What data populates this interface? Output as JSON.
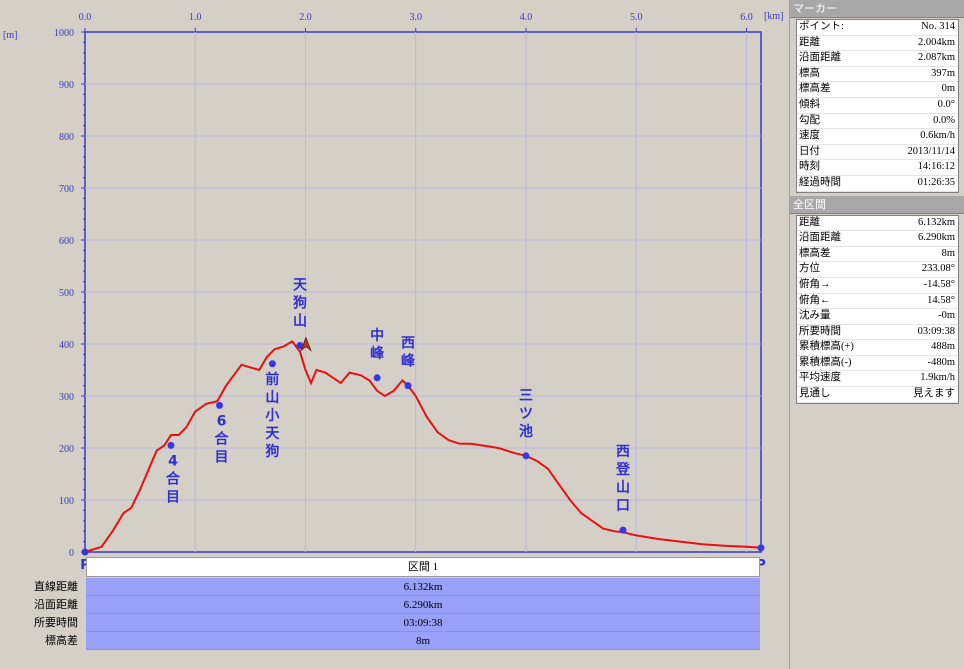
{
  "chart_data": {
    "type": "line",
    "x_unit": "[km]",
    "y_unit": "[m]",
    "xlim": [
      0,
      6.132
    ],
    "ylim": [
      0,
      1000
    ],
    "x_ticks": [
      "0.0",
      "1.0",
      "2.0",
      "3.0",
      "4.0",
      "5.0",
      "6.0"
    ],
    "y_ticks": [
      "0",
      "100",
      "200",
      "300",
      "400",
      "500",
      "600",
      "700",
      "800",
      "900",
      "1000"
    ],
    "grid": true,
    "series": [
      {
        "color": "#e81010",
        "x": [
          0,
          0.15,
          0.25,
          0.35,
          0.42,
          0.5,
          0.58,
          0.65,
          0.72,
          0.78,
          0.85,
          0.92,
          1.0,
          1.1,
          1.2,
          1.28,
          1.35,
          1.42,
          1.5,
          1.58,
          1.65,
          1.72,
          1.8,
          1.88,
          1.95,
          2.0,
          2.05,
          2.1,
          2.18,
          2.25,
          2.32,
          2.4,
          2.5,
          2.58,
          2.65,
          2.72,
          2.8,
          2.88,
          2.93,
          3.0,
          3.1,
          3.2,
          3.3,
          3.4,
          3.5,
          3.6,
          3.75,
          3.9,
          4.0,
          4.1,
          4.2,
          4.3,
          4.4,
          4.5,
          4.6,
          4.7,
          4.8,
          4.88,
          5.0,
          5.2,
          5.4,
          5.6,
          5.8,
          6.0,
          6.132
        ],
        "y": [
          0,
          10,
          40,
          75,
          85,
          120,
          160,
          195,
          205,
          225,
          225,
          240,
          270,
          285,
          290,
          320,
          340,
          360,
          355,
          350,
          375,
          390,
          395,
          405,
          385,
          350,
          325,
          350,
          345,
          335,
          325,
          345,
          340,
          330,
          310,
          300,
          310,
          330,
          320,
          300,
          260,
          230,
          215,
          208,
          208,
          205,
          200,
          190,
          185,
          175,
          160,
          130,
          100,
          75,
          60,
          45,
          40,
          38,
          32,
          25,
          20,
          15,
          12,
          10,
          8
        ]
      }
    ],
    "markers": [
      {
        "label": "4合目",
        "x": 0.78,
        "y": 205
      },
      {
        "label": "6合目",
        "x": 1.22,
        "y": 282
      },
      {
        "label": "前山小天狗",
        "x": 1.7,
        "y": 362
      },
      {
        "label": "天狗山",
        "x": 1.95,
        "y": 397
      },
      {
        "label": "中峰",
        "x": 2.65,
        "y": 335
      },
      {
        "label": "西峰",
        "x": 2.93,
        "y": 320
      },
      {
        "label": "三ツ池",
        "x": 4.0,
        "y": 185
      },
      {
        "label": "西登山口",
        "x": 4.88,
        "y": 42
      }
    ],
    "endpoints": [
      {
        "label": "P",
        "x": 0,
        "y": 0
      },
      {
        "label": "P",
        "x": 6.132,
        "y": 8
      }
    ]
  },
  "marker_panel": {
    "title": "マーカー",
    "rows": [
      {
        "k": "ポイント:",
        "v": "No. 314"
      },
      {
        "k": "距離",
        "v": "2.004km"
      },
      {
        "k": "沿面距離",
        "v": "2.087km"
      },
      {
        "k": "標高",
        "v": "397m"
      },
      {
        "k": "標高差",
        "v": "0m"
      },
      {
        "k": "傾斜",
        "v": "0.0°"
      },
      {
        "k": "勾配",
        "v": "0.0%"
      },
      {
        "k": "速度",
        "v": "0.6km/h"
      },
      {
        "k": "日付",
        "v": "2013/11/14"
      },
      {
        "k": "時刻",
        "v": "14:16:12"
      },
      {
        "k": "経過時間",
        "v": "01:26:35"
      }
    ]
  },
  "section_panel": {
    "title": "全区間",
    "rows": [
      {
        "k": "距離",
        "v": "6.132km"
      },
      {
        "k": "沿面距離",
        "v": "6.290km"
      },
      {
        "k": "標高差",
        "v": "8m"
      },
      {
        "k": "方位",
        "v": "233.08°"
      },
      {
        "k": "俯角→",
        "v": "-14.58°"
      },
      {
        "k": "俯角←",
        "v": "14.58°"
      },
      {
        "k": "沈み量",
        "v": "-0m"
      },
      {
        "k": "所要時間",
        "v": "03:09:38"
      },
      {
        "k": "累積標高(+)",
        "v": "488m"
      },
      {
        "k": "累積標高(-)",
        "v": "-480m"
      },
      {
        "k": "平均速度",
        "v": "1.9km/h"
      },
      {
        "k": "見通し",
        "v": "見えます"
      }
    ]
  },
  "section_label": "区間 1",
  "summary": [
    {
      "label": "直線距離",
      "value": "6.132km"
    },
    {
      "label": "沿面距離",
      "value": "6.290km"
    },
    {
      "label": "所要時間",
      "value": "03:09:38"
    },
    {
      "label": "標高差",
      "value": "8m"
    }
  ]
}
